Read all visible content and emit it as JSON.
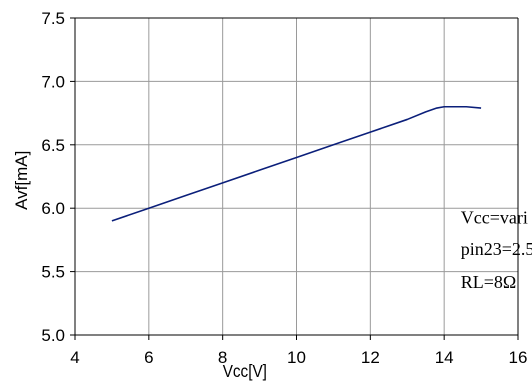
{
  "chart_data": {
    "type": "line",
    "xlabel": "Vcc[V]",
    "ylabel": "Avf[mA]",
    "xlim": [
      4,
      16
    ],
    "ylim": [
      5.0,
      7.5
    ],
    "x_ticks": [
      4,
      6,
      8,
      10,
      12,
      14,
      16
    ],
    "y_ticks": [
      5.0,
      5.5,
      6.0,
      6.5,
      7.0,
      7.5
    ],
    "x_tick_labels": [
      "4",
      "6",
      "8",
      "10",
      "12",
      "14",
      "16"
    ],
    "y_tick_labels": [
      "5.0",
      "5.5",
      "6.0",
      "6.5",
      "7.0",
      "7.5"
    ],
    "grid": true,
    "series": [
      {
        "color": "#0b1f7a",
        "x": [
          5.0,
          6.0,
          7.0,
          8.0,
          9.0,
          10.0,
          11.0,
          12.0,
          13.0,
          13.5,
          13.8,
          14.0,
          14.3,
          14.6,
          15.0
        ],
        "y": [
          5.9,
          6.0,
          6.1,
          6.2,
          6.3,
          6.4,
          6.5,
          6.6,
          6.7,
          6.76,
          6.79,
          6.8,
          6.8,
          6.8,
          6.79
        ]
      }
    ],
    "annotations": [
      {
        "text": "Vcc=vari",
        "x": 14.45,
        "y": 5.88
      },
      {
        "text": "pin23=2.5",
        "x": 14.45,
        "y": 5.63
      },
      {
        "text": "RL=8Ω",
        "x": 14.45,
        "y": 5.37
      }
    ]
  }
}
